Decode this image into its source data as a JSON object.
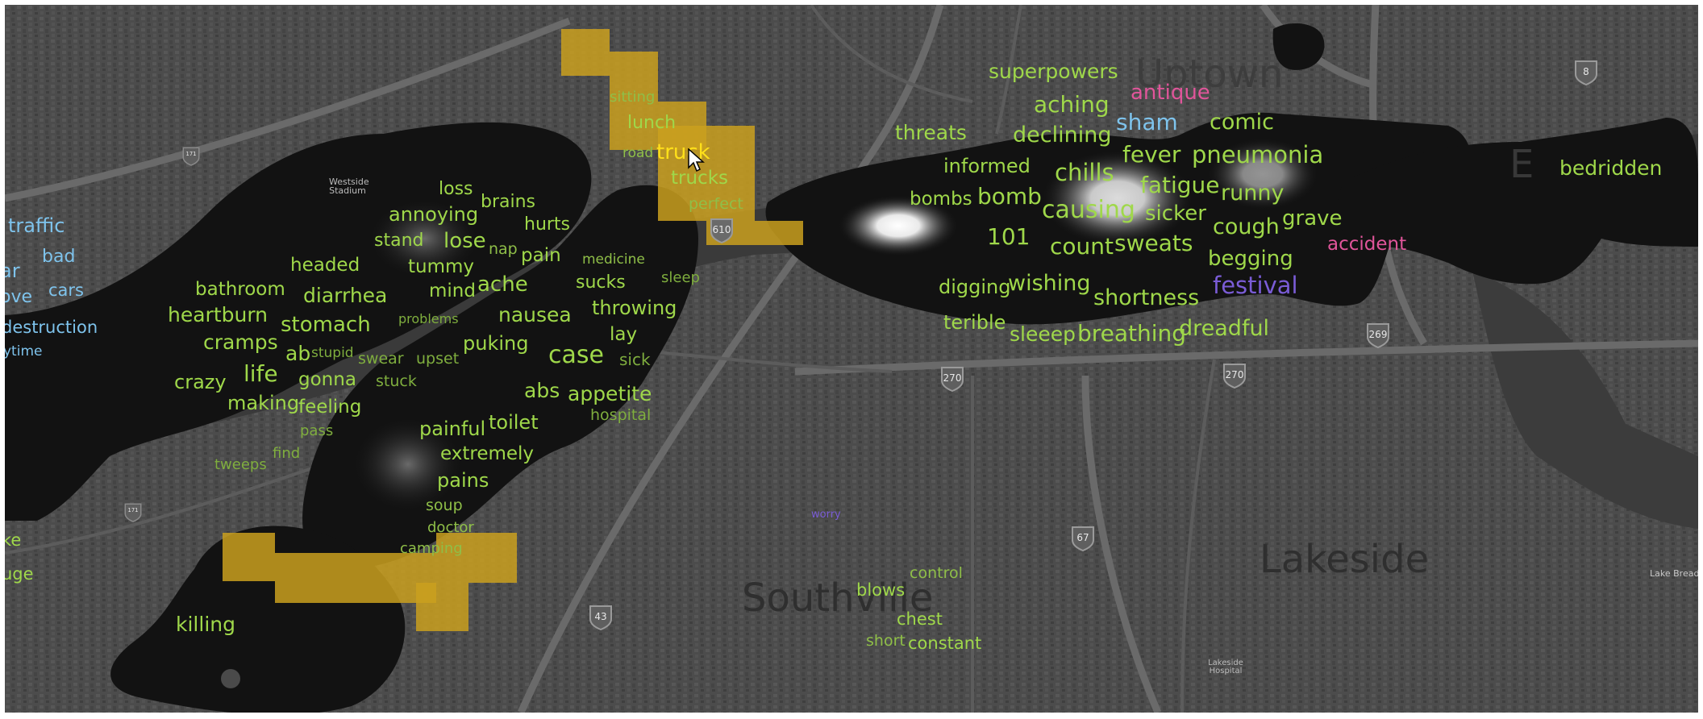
{
  "map": {
    "place_labels": [
      {
        "key": "uptown",
        "text": "Uptown"
      },
      {
        "key": "lakeside",
        "text": "Lakeside"
      },
      {
        "key": "southville",
        "text": "Southville"
      },
      {
        "key": "east-fragment",
        "text": "E"
      },
      {
        "key": "stadium",
        "text": "Westside Stadium"
      },
      {
        "key": "hospital",
        "text": "Lakeside Hospital"
      },
      {
        "key": "lake-bread",
        "text": "Lake Bread"
      }
    ],
    "shields": [
      {
        "key": "route-8",
        "text": "8"
      },
      {
        "key": "route-610",
        "text": "610"
      },
      {
        "key": "route-270-a",
        "text": "270"
      },
      {
        "key": "route-270-b",
        "text": "270"
      },
      {
        "key": "route-269",
        "text": "269"
      },
      {
        "key": "route-67",
        "text": "67"
      },
      {
        "key": "route-43",
        "text": "43"
      },
      {
        "key": "route-171",
        "text": "171"
      },
      {
        "key": "route-171b",
        "text": "171"
      }
    ],
    "colors": {
      "green": "#9fd84a",
      "blue": "#7ec3ec",
      "pink": "#e0559a",
      "purple": "#7a5cd6",
      "highlight": "#ffe01a",
      "grid_cell": "#caa01e"
    }
  },
  "word_cloud": {
    "left_edge": [
      "traffic",
      "bad",
      "ar",
      "cars",
      "ove",
      "destruction",
      "ytime",
      "ke",
      "uge"
    ],
    "cluster_west": [
      "loss",
      "brains",
      "annoying",
      "hurts",
      "stand",
      "lose",
      "nap",
      "pain",
      "headed",
      "tummy",
      "bathroom",
      "diarrhea",
      "mind",
      "ache",
      "heartburn",
      "stomach",
      "problems",
      "nausea",
      "cramps",
      "ab",
      "stupid",
      "swear",
      "upset",
      "puking",
      "crazy",
      "life",
      "gonna",
      "stuck",
      "making",
      "feeling",
      "pass",
      "find",
      "tweeps"
    ],
    "cluster_center": [
      "sitting",
      "lunch",
      "road",
      "truck",
      "trucks",
      "perfect",
      "medicine",
      "sleep",
      "sucks",
      "throwing",
      "lay",
      "case",
      "sick",
      "abs",
      "appetite",
      "hospital",
      "painful",
      "toilet",
      "extremely",
      "pains",
      "soup",
      "doctor",
      "camping",
      "killing"
    ],
    "cluster_east": [
      "superpowers",
      "antique",
      "aching",
      "sham",
      "comic",
      "threats",
      "declining",
      "fever",
      "pneumonia",
      "informed",
      "chills",
      "fatigue",
      "runny",
      "bombs",
      "bomb",
      "causing",
      "sicker",
      "cough",
      "grave",
      "101",
      "count",
      "sweats",
      "accident",
      "begging",
      "digging",
      "wishing",
      "shortness",
      "festival",
      "terible",
      "sleeep",
      "breathing",
      "dreadful",
      "bedridden"
    ],
    "cluster_south": [
      "control",
      "blows",
      "chest",
      "short",
      "constant",
      "worry"
    ]
  }
}
